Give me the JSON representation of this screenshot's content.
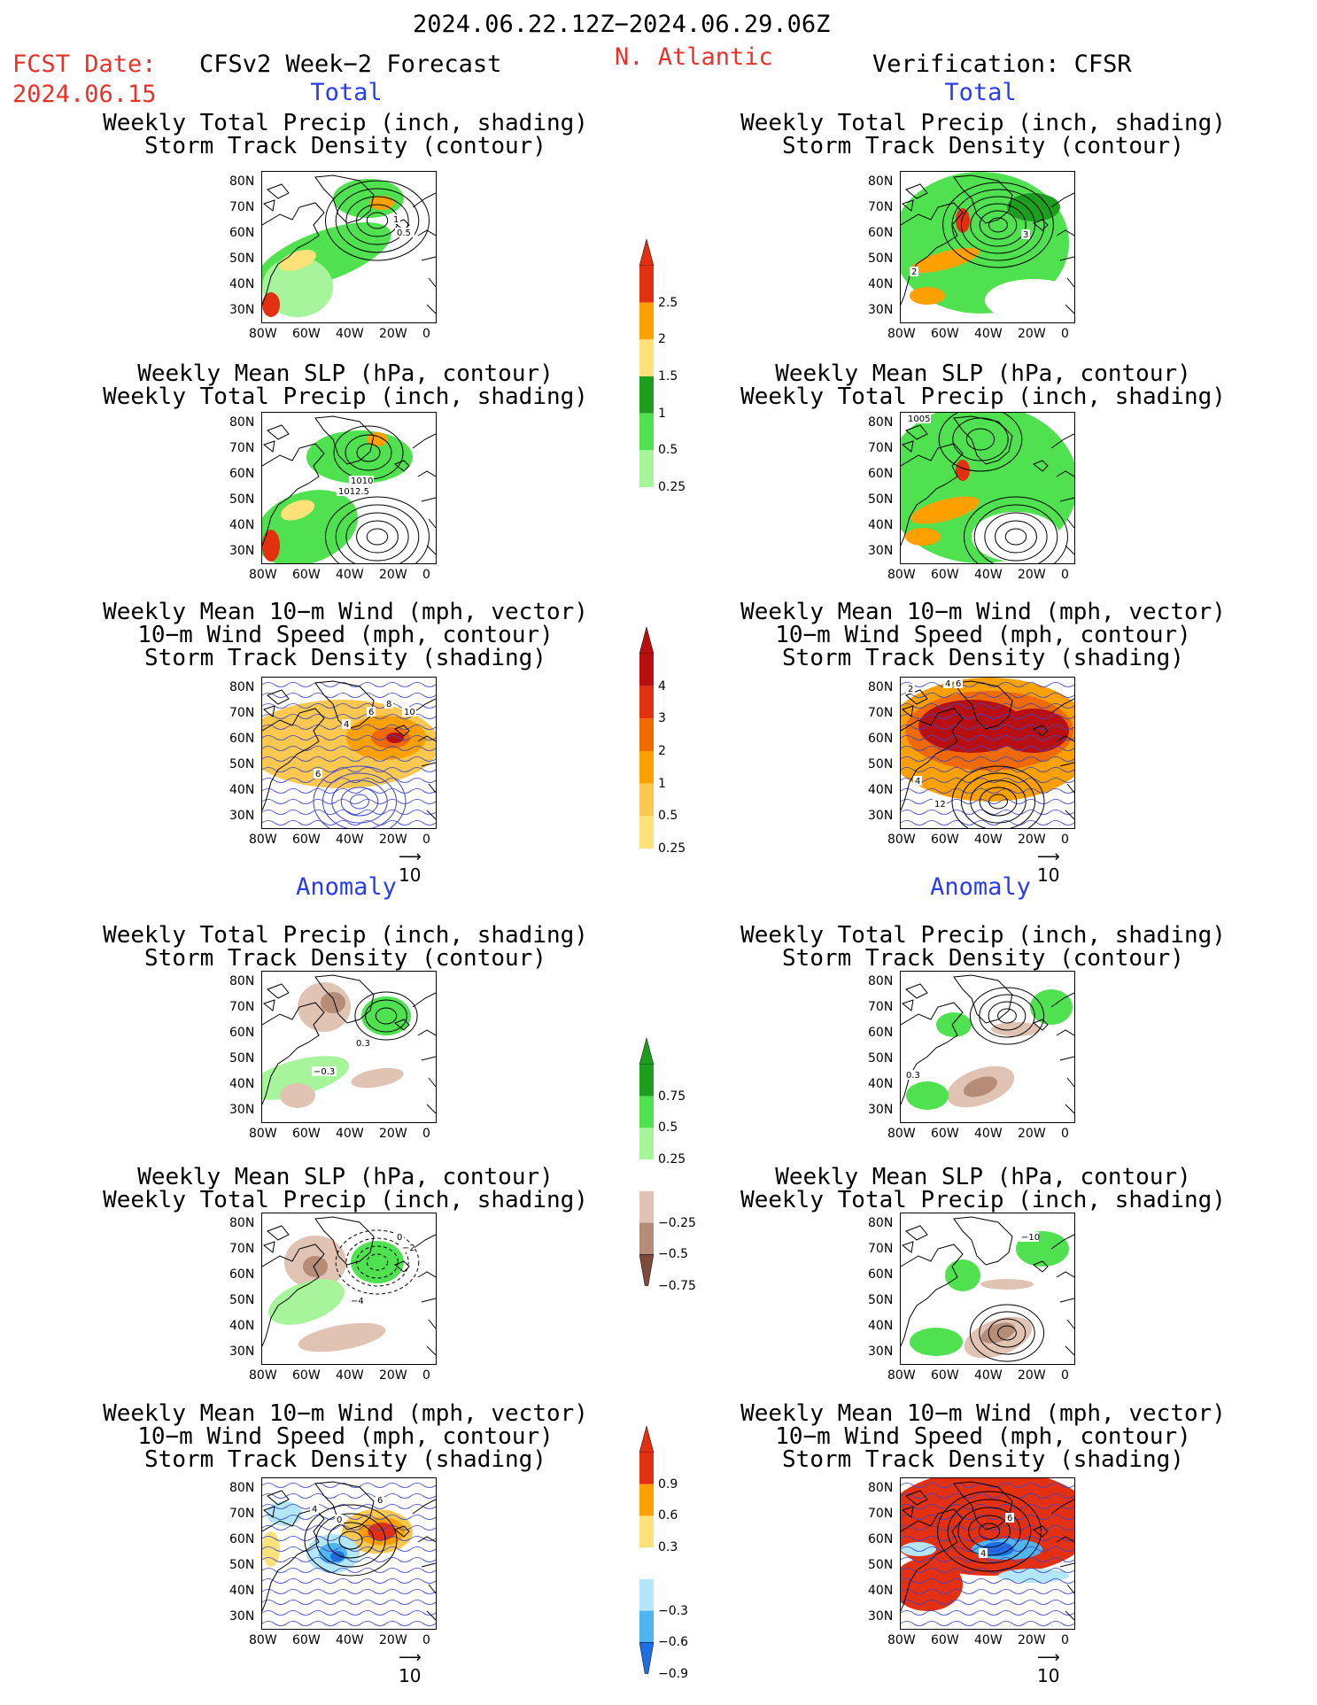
{
  "header": {
    "date_range": "2024.06.22.12Z−2024.06.29.06Z",
    "fcst_label": "FCST Date:",
    "fcst_date": "2024.06.15",
    "model": "CFSv2 Week−2 Forecast",
    "region": "N. Atlantic",
    "verification": "Verification: CFSR"
  },
  "sections": {
    "total": "Total",
    "anomaly": "Anomaly"
  },
  "panel_titles": {
    "precip_storm": [
      "Weekly Total Precip (inch, shading)",
      "Storm Track Density (contour)"
    ],
    "slp_precip": [
      "Weekly Mean SLP (hPa, contour)",
      "Weekly Total Precip (inch, shading)"
    ],
    "wind_storm": [
      "Weekly Mean 10−m Wind (mph, vector)",
      "10−m Wind Speed (mph, contour)",
      "Storm Track Density (shading)"
    ]
  },
  "axes": {
    "lat_ticks": [
      "80N",
      "70N",
      "60N",
      "50N",
      "40N",
      "30N"
    ],
    "lon_ticks": [
      "80W",
      "60W",
      "40W",
      "20W",
      "0"
    ]
  },
  "vector_ref": "10",
  "contour_labels": {
    "f_total_precip": [
      "1",
      "0.5"
    ],
    "v_total_precip": [
      "3",
      "2"
    ],
    "f_total_slp": [
      "1010",
      "1012.5"
    ],
    "v_total_slp": [
      "1005"
    ],
    "f_total_wind": [
      "4",
      "6",
      "8",
      "10",
      "6"
    ],
    "v_total_wind": [
      "2",
      "4",
      "6",
      "4",
      "12"
    ],
    "f_anom_precip": [
      "0.3",
      "−0.3"
    ],
    "v_anom_precip": [
      "0.3"
    ],
    "f_anom_slp": [
      "0",
      "−2",
      "−4"
    ],
    "v_anom_slp": [
      "−10"
    ],
    "f_anom_wind": [
      "4",
      "0",
      "6"
    ],
    "v_anom_wind": [
      "6",
      "4"
    ]
  },
  "colors": {
    "green_light": "#a7f59a",
    "green_mid": "#50e150",
    "green_dark": "#1e9e1e",
    "yellow": "#fde27a",
    "orange": "#fda000",
    "red": "#e23010",
    "orange_light": "#fdc850",
    "orange_mid": "#fda000",
    "orange_dark": "#f06a00",
    "red_dark": "#b81010",
    "brown_light": "#e1c3b4",
    "brown_mid": "#b48c78",
    "brown_dark": "#7d4b3c",
    "blue_light": "#b4e6fa",
    "blue_mid": "#50b4f0",
    "blue_dark": "#1e6ee6",
    "contour": "#000000",
    "wind_contour": "#3c46c8",
    "title_red": "#e8322a",
    "title_blue": "#2a3cf0"
  },
  "colorbars": [
    {
      "name": "total-precip",
      "labels": [
        "2.5",
        "2",
        "1.5",
        "1",
        "0.5",
        "0.25"
      ]
    },
    {
      "name": "total-storm-density",
      "labels": [
        "4",
        "3",
        "2",
        "1",
        "0.5",
        "0.25"
      ]
    },
    {
      "name": "anom-precip",
      "labels": [
        "0.75",
        "0.5",
        "0.25",
        "−0.25",
        "−0.5",
        "−0.75"
      ]
    },
    {
      "name": "anom-storm-density",
      "labels": [
        "0.9",
        "0.6",
        "0.3",
        "−0.3",
        "−0.6",
        "−0.9"
      ]
    }
  ]
}
